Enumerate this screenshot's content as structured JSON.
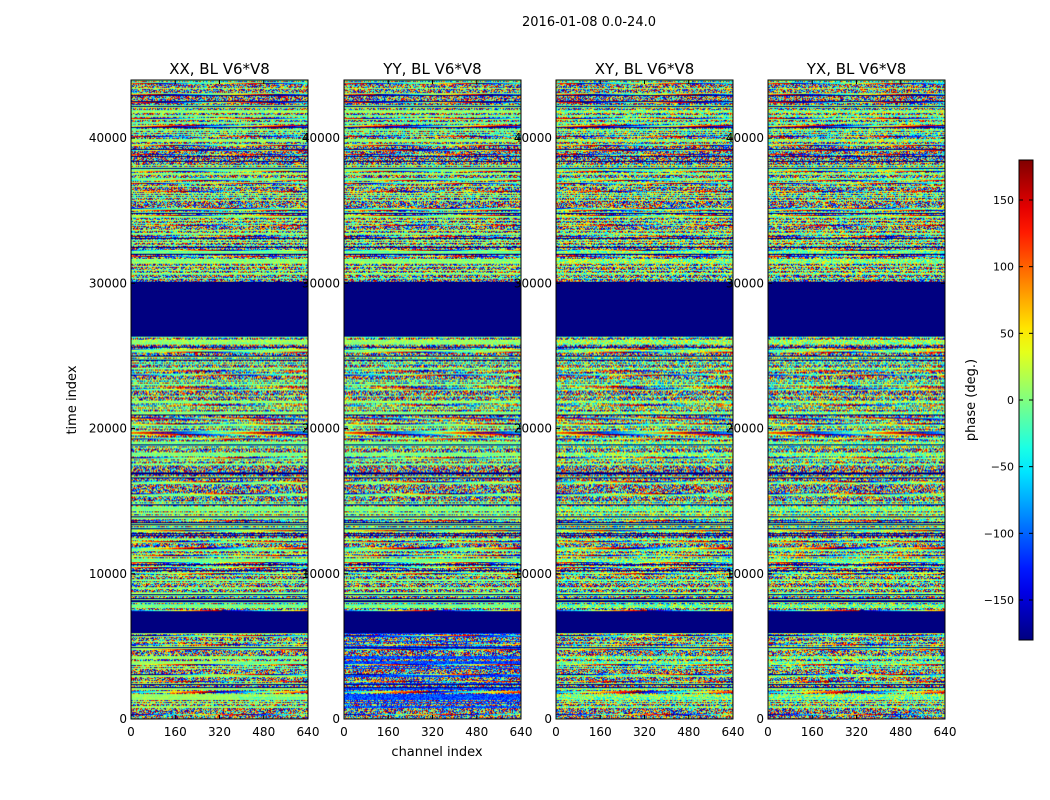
{
  "figure": {
    "suptitle": "2016-01-08 0.0-24.0",
    "xlabel": "channel index",
    "ylabel": "time index"
  },
  "chart_data": {
    "type": "heatmap",
    "colormap": "jet",
    "xlim": [
      0,
      640
    ],
    "ylim": [
      0,
      44000
    ],
    "xticks": [
      "0",
      "160",
      "320",
      "480",
      "640"
    ],
    "xtick_values": [
      0,
      160,
      320,
      480,
      640
    ],
    "yticks": [
      "0",
      "10000",
      "20000",
      "30000",
      "40000"
    ],
    "ytick_values": [
      0,
      10000,
      20000,
      30000,
      40000
    ],
    "panels": [
      {
        "title": "XX, BL V6*V8",
        "pol": "XX"
      },
      {
        "title": "YY, BL V6*V8",
        "pol": "YY"
      },
      {
        "title": "XY, BL V6*V8",
        "pol": "XY"
      },
      {
        "title": "YX, BL V6*V8",
        "pol": "YX"
      }
    ],
    "flagged_time_ranges": [
      [
        26300,
        30100
      ],
      [
        7400,
        6000
      ]
    ],
    "colorbar": {
      "label": "phase (deg.)",
      "vmin": -180,
      "vmax": 180,
      "ticks": [
        "150",
        "100",
        "50",
        "0",
        "−50",
        "−100",
        "−150"
      ],
      "tick_values": [
        150,
        100,
        50,
        0,
        -50,
        -100,
        -150
      ]
    }
  }
}
